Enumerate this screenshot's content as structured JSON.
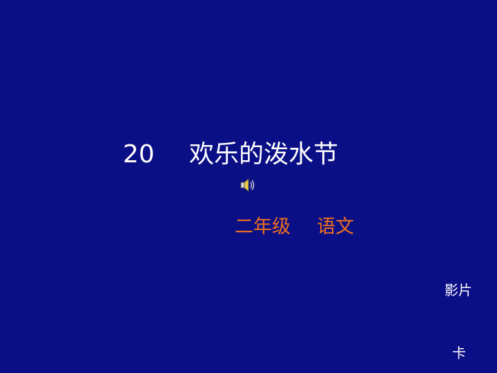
{
  "slide": {
    "title": {
      "number": "20",
      "text": "欢乐的泼水节"
    },
    "audio_icon": "speaker-icon",
    "subtitle": {
      "grade": "二年级",
      "subject": "语文"
    },
    "corner_labels": {
      "film": "影片",
      "card": "卡"
    }
  },
  "colors": {
    "background": "#0b0f85",
    "title_text": "#ffffff",
    "subtitle_text": "#f07020"
  }
}
